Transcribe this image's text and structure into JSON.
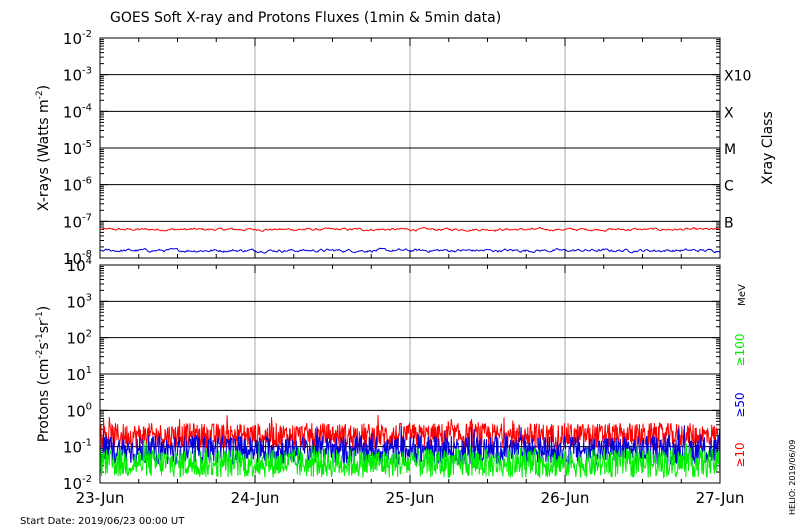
{
  "title": "GOES Soft X-ray and Protons Fluxes   (1min & 5min data)",
  "start_date": "Start Date: 2019/06/23 00:00 UT",
  "side_label": "HELIO: 2019/06/09",
  "colors": {
    "red": "#ff0000",
    "blue": "#0000dd",
    "green": "#00ee00",
    "black": "#000000",
    "day_grid": "#aaaaaa"
  },
  "chart_data": [
    {
      "type": "line",
      "panel": "xray",
      "ylabel": "X-rays (Watts m^-2)",
      "ylabel_parts": {
        "prefix": "X-rays (Watts m",
        "sup": "-2",
        "suffix": ")"
      },
      "yscale": "log",
      "ylim": [
        1e-08,
        0.01
      ],
      "y_ticks": [
        {
          "value": 0.01,
          "base": "10",
          "exp": "-2"
        },
        {
          "value": 0.001,
          "base": "10",
          "exp": "-3"
        },
        {
          "value": 0.0001,
          "base": "10",
          "exp": "-4"
        },
        {
          "value": 1e-05,
          "base": "10",
          "exp": "-5"
        },
        {
          "value": 1e-06,
          "base": "10",
          "exp": "-6"
        },
        {
          "value": 1e-07,
          "base": "10",
          "exp": "-7"
        },
        {
          "value": 1e-08,
          "base": "10",
          "exp": "-8"
        }
      ],
      "right_axis_label": "Xray Class",
      "class_labels": [
        {
          "label": "X10",
          "value": 0.001
        },
        {
          "label": "X",
          "value": 0.0001
        },
        {
          "label": "M",
          "value": 1e-05
        },
        {
          "label": "C",
          "value": 1e-06
        },
        {
          "label": "B",
          "value": 1e-07
        }
      ],
      "series": [
        {
          "color": "red",
          "level": 6e-08,
          "variability": 0.05
        },
        {
          "color": "blue",
          "level": 1.6e-08,
          "variability": 0.06
        }
      ]
    },
    {
      "type": "line",
      "panel": "protons",
      "ylabel": "Protons (cm^-2 s^-1 sr^-1)",
      "ylabel_parts": {
        "prefix": "Protons (cm",
        "sup1": "-2",
        "mid1": "s",
        "sup2": "-1",
        "mid2": "sr",
        "sup3": "-1",
        "suffix": ")"
      },
      "yscale": "log",
      "ylim": [
        0.01,
        10000
      ],
      "y_ticks": [
        {
          "value": 10000.0,
          "base": "10",
          "exp": "4"
        },
        {
          "value": 1000.0,
          "base": "10",
          "exp": "3"
        },
        {
          "value": 100.0,
          "base": "10",
          "exp": "2"
        },
        {
          "value": 10.0,
          "base": "10",
          "exp": "1"
        },
        {
          "value": 1.0,
          "base": "10",
          "exp": "0"
        },
        {
          "value": 0.1,
          "base": "10",
          "exp": "-1"
        },
        {
          "value": 0.01,
          "base": "10",
          "exp": "-2"
        }
      ],
      "threshold_line": 10,
      "right_axis_label": "MeV",
      "energy_labels": [
        {
          "label": "≥100",
          "color": "green"
        },
        {
          "label": "≥50",
          "color": "blue"
        },
        {
          "label": "≥10",
          "color": "red"
        }
      ],
      "series": [
        {
          "color": "red",
          "level": 0.2,
          "variability": 0.35
        },
        {
          "color": "blue",
          "level": 0.08,
          "variability": 0.4
        },
        {
          "color": "green",
          "level": 0.035,
          "variability": 0.4
        }
      ]
    }
  ],
  "x_axis": {
    "tick_labels": [
      "23-Jun",
      "24-Jun",
      "25-Jun",
      "26-Jun",
      "27-Jun"
    ],
    "range_days": [
      0,
      4
    ]
  }
}
